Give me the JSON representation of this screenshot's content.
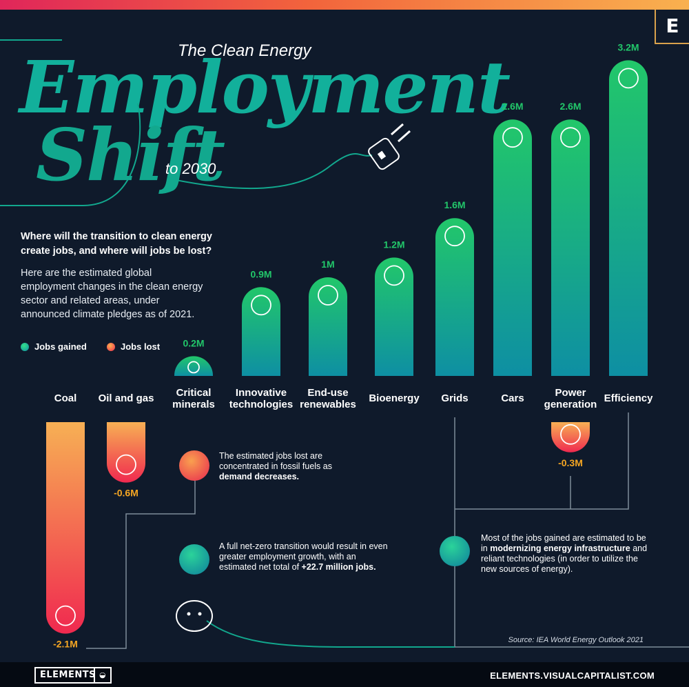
{
  "header": {
    "title_pre": "The Clean Energy",
    "title_main": "Employment",
    "title_shift": "Shift",
    "title_post": "to 2030",
    "brand_mark": "E"
  },
  "intro": {
    "question": "Where will the transition to clean energy create jobs, and where will jobs be lost?",
    "description": "Here are the estimated global employment changes in the clean energy sector and related areas, under announced climate pledges as of 2021."
  },
  "legend": {
    "gained": "Jobs gained",
    "lost": "Jobs lost"
  },
  "colors": {
    "background": "#0f1a2b",
    "gain_top": "#22c76a",
    "gain_bottom": "#0e8fa3",
    "loss_top": "#f7b054",
    "loss_bottom": "#f0294f",
    "label_gain": "#22c76a",
    "label_loss": "#f5a623",
    "connector": "#7f8c99"
  },
  "chart_data": {
    "type": "bar",
    "unit": "M",
    "categories": [
      "Coal",
      "Oil and gas",
      "Critical\nminerals",
      "Innovative\ntechnologies",
      "End-use\nrenewables",
      "Bioenergy",
      "Grids",
      "Cars",
      "Power\ngeneration",
      "Efficiency"
    ],
    "series": [
      {
        "name": "Jobs gained",
        "values": [
          0,
          0,
          0.2,
          0.9,
          1.0,
          1.2,
          1.6,
          2.6,
          2.6,
          3.2
        ],
        "labels": [
          "",
          "",
          "0.2M",
          "0.9M",
          "1M",
          "1.2M",
          "1.6M",
          "2.6M",
          "2.6M",
          "3.2M"
        ]
      },
      {
        "name": "Jobs lost",
        "values": [
          -2.1,
          -0.6,
          0,
          0,
          0,
          0,
          0,
          0,
          -0.3,
          0
        ],
        "labels": [
          "-2.1M",
          "-0.6M",
          "",
          "",
          "",
          "",
          "",
          "",
          "-0.3M",
          ""
        ]
      }
    ],
    "icons": [
      "coal-icon",
      "oil-gas-icon",
      "critical-minerals-icon",
      "innovative-tech-icon",
      "end-use-renewables-icon",
      "bioenergy-icon",
      "grids-icon",
      "cars-icon",
      "power-generation-icon",
      "efficiency-icon"
    ]
  },
  "notes": {
    "loss_note_1": "The estimated jobs lost are concentrated in fossil fuels as ",
    "loss_note_2": "demand decreases.",
    "netzero_note_1": "A full net-zero transition would result in even greater employment growth, with an estimated net total of ",
    "netzero_note_2": "+22.7 million jobs.",
    "gain_note_1": "Most of the jobs gained are estimated to be in ",
    "gain_note_2": "modernizing energy infrastructure",
    "gain_note_3": " and reliant technologies (in order to utilize the new sources of energy)."
  },
  "source": "Source: IEA World Energy Outlook 2021",
  "footer": {
    "logo": "ELEMENTS",
    "url": "ELEMENTS.VISUALCAPITALIST.COM"
  }
}
